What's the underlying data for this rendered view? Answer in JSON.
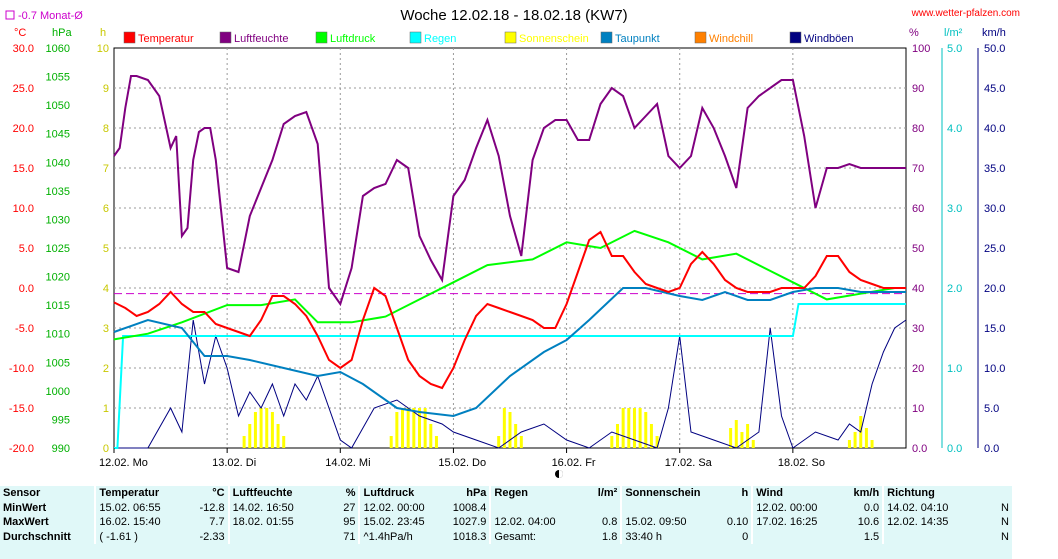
{
  "chart_data": {
    "title": "Woche 12.02.18 - 18.02.18 (KW7)",
    "website": "www.wetter-pfalzen.com",
    "month_avg_label": "-0.7 Monat-Ø",
    "month_avg_temp": -0.7,
    "type": "line",
    "x_ticks": [
      "12.02. Mo",
      "13.02. Di",
      "14.02. Mi",
      "15.02. Do",
      "16.02. Fr",
      "17.02. Sa",
      "18.02. So"
    ],
    "grid": true,
    "legend": [
      {
        "name": "Temperatur",
        "color": "#ff0000"
      },
      {
        "name": "Luftfeuchte",
        "color": "#800080"
      },
      {
        "name": "Luftdruck",
        "color": "#00ff00"
      },
      {
        "name": "Regen",
        "color": "#00ffff"
      },
      {
        "name": "Sonnenschein",
        "color": "#ffff00"
      },
      {
        "name": "Taupunkt",
        "color": "#0080c0"
      },
      {
        "name": "Windchill",
        "color": "#ff8000"
      },
      {
        "name": "Windböen",
        "color": "#000080"
      }
    ],
    "axes": {
      "temp": {
        "unit": "°C",
        "range": [
          -20,
          30
        ],
        "ticks": [
          "30.0",
          "25.0",
          "20.0",
          "15.0",
          "10.0",
          "5.0",
          "0.0",
          "-5.0",
          "-10.0",
          "-15.0",
          "-20.0"
        ],
        "color": "#ff0000"
      },
      "pressure": {
        "unit": "hPa",
        "range": [
          990,
          1060
        ],
        "ticks": [
          "1060",
          "1055",
          "1050",
          "1045",
          "1040",
          "1035",
          "1030",
          "1025",
          "1020",
          "1015",
          "1010",
          "1005",
          "1000",
          "995",
          "990"
        ],
        "color": "#00c000"
      },
      "sun": {
        "unit": "h",
        "range": [
          0,
          10
        ],
        "ticks": [
          "10",
          "9",
          "8",
          "7",
          "6",
          "5",
          "4",
          "3",
          "2",
          "1",
          "0"
        ],
        "color": "#d8d800"
      },
      "humidity": {
        "unit": "%",
        "range": [
          0,
          100
        ],
        "ticks": [
          "100",
          "90",
          "80",
          "70",
          "60",
          "50",
          "40",
          "30",
          "20",
          "10",
          "0.0"
        ],
        "color": "#800080"
      },
      "rain": {
        "unit": "l/m²",
        "range": [
          0,
          5
        ],
        "ticks": [
          "5.0",
          "4.0",
          "3.0",
          "2.0",
          "1.0",
          "0.0"
        ],
        "color": "#00c0c0"
      },
      "wind": {
        "unit": "km/h",
        "range": [
          0,
          50
        ],
        "ticks": [
          "50.0",
          "45.0",
          "40.0",
          "35.0",
          "30.0",
          "25.0",
          "20.0",
          "15.0",
          "10.0",
          "5.0",
          "0.0"
        ],
        "color": "#000080"
      }
    },
    "series": [
      {
        "name": "Temperatur",
        "axis": "temp",
        "day_x": [
          0,
          0.1,
          0.2,
          0.3,
          0.4,
          0.5,
          0.6,
          0.7,
          0.8,
          0.9,
          1.0,
          1.1,
          1.2,
          1.3,
          1.4,
          1.5,
          1.6,
          1.7,
          1.8,
          1.9,
          2.0,
          2.1,
          2.2,
          2.3,
          2.4,
          2.5,
          2.6,
          2.7,
          2.8,
          2.9,
          3.0,
          3.1,
          3.2,
          3.3,
          3.4,
          3.5,
          3.6,
          3.7,
          3.8,
          3.9,
          4.0,
          4.1,
          4.2,
          4.3,
          4.4,
          4.5,
          4.6,
          4.7,
          4.8,
          4.9,
          5.0,
          5.1,
          5.2,
          5.3,
          5.4,
          5.5,
          5.6,
          5.7,
          5.8,
          5.9,
          6.0,
          6.1,
          6.2,
          6.3,
          6.4,
          6.5,
          6.6,
          6.7,
          6.8,
          6.9,
          7.0
        ],
        "values": [
          -1.8,
          -2.5,
          -3.5,
          -3.0,
          -2.0,
          -0.5,
          -2.0,
          -3.0,
          -3.0,
          -4.5,
          -5.0,
          -5.5,
          -6.0,
          -4.0,
          -1.0,
          -1.0,
          -2.0,
          -3.5,
          -6.0,
          -9.0,
          -10.0,
          -9.0,
          -4.0,
          0.0,
          -1.0,
          -5.0,
          -9.0,
          -11.0,
          -12.0,
          -12.5,
          -10.0,
          -6.5,
          -3.5,
          -2.0,
          -2.5,
          -3.0,
          -3.5,
          -4.0,
          -5.0,
          -5.0,
          -2.0,
          2.0,
          6.0,
          7.0,
          4.0,
          4.0,
          2.0,
          0.5,
          0.0,
          -0.5,
          0.0,
          3.0,
          4.5,
          3.0,
          1.0,
          0.0,
          -0.5,
          -0.5,
          -0.5,
          0.0,
          0.0,
          0.0,
          1.5,
          4.0,
          4.0,
          2.0,
          1.0,
          0.5,
          0.0,
          0.0,
          0.0
        ],
        "color": "#ff0000"
      },
      {
        "name": "Luftfeuchte",
        "axis": "humidity",
        "day_x": [
          0,
          0.05,
          0.1,
          0.15,
          0.2,
          0.3,
          0.4,
          0.5,
          0.55,
          0.6,
          0.65,
          0.7,
          0.75,
          0.8,
          0.85,
          0.9,
          1.0,
          1.1,
          1.2,
          1.3,
          1.4,
          1.5,
          1.6,
          1.7,
          1.8,
          1.9,
          2.0,
          2.1,
          2.2,
          2.3,
          2.4,
          2.5,
          2.6,
          2.7,
          2.8,
          2.9,
          3.0,
          3.1,
          3.2,
          3.3,
          3.4,
          3.5,
          3.6,
          3.7,
          3.8,
          3.9,
          4.0,
          4.1,
          4.2,
          4.3,
          4.4,
          4.5,
          4.6,
          4.7,
          4.8,
          4.9,
          5.0,
          5.1,
          5.2,
          5.3,
          5.4,
          5.5,
          5.6,
          5.7,
          5.8,
          5.9,
          6.0,
          6.1,
          6.2,
          6.3,
          6.4,
          6.5,
          6.6,
          6.7,
          6.8,
          6.9,
          7.0
        ],
        "values": [
          73,
          75,
          85,
          93,
          93,
          92,
          88,
          75,
          78,
          53,
          55,
          72,
          79,
          80,
          80,
          72,
          45,
          44,
          58,
          65,
          72,
          81,
          83,
          84,
          76,
          40,
          36,
          45,
          63,
          65,
          66,
          72,
          70,
          53,
          47,
          42,
          63,
          67,
          75,
          82,
          73,
          58,
          48,
          72,
          80,
          82,
          82,
          77,
          77,
          86,
          90,
          88,
          80,
          83,
          86,
          73,
          70,
          73,
          85,
          80,
          73,
          65,
          85,
          88,
          90,
          92,
          92,
          78,
          60,
          70,
          70,
          71,
          70,
          70,
          70,
          70,
          70
        ],
        "color": "#800080"
      },
      {
        "name": "Luftdruck",
        "axis": "pressure",
        "day_x": [
          0,
          0.3,
          0.6,
          1.0,
          1.3,
          1.6,
          1.8,
          2.1,
          2.4,
          2.7,
          3.0,
          3.3,
          3.7,
          4.0,
          4.3,
          4.6,
          4.9,
          5.2,
          5.5,
          5.8,
          6.0,
          6.3,
          6.6,
          6.9,
          7.0
        ],
        "values": [
          1009,
          1010,
          1012,
          1015,
          1015,
          1016,
          1012,
          1012,
          1013,
          1016,
          1019,
          1022,
          1023,
          1026,
          1025,
          1028,
          1026,
          1023,
          1024,
          1021,
          1019,
          1016,
          1017,
          1018,
          1018
        ],
        "color": "#00ff00"
      },
      {
        "name": "Taupunkt",
        "axis": "temp",
        "day_x": [
          0,
          0.3,
          0.6,
          0.8,
          1.0,
          1.2,
          1.5,
          1.8,
          2.0,
          2.2,
          2.5,
          2.7,
          3.0,
          3.2,
          3.5,
          3.8,
          4.0,
          4.2,
          4.5,
          4.7,
          5.0,
          5.2,
          5.4,
          5.6,
          5.8,
          6.0,
          6.2,
          6.4,
          6.6,
          6.8,
          7.0
        ],
        "values": [
          -5.5,
          -4.0,
          -5.0,
          -8.5,
          -8.5,
          -9.0,
          -10.0,
          -11.0,
          -10.5,
          -12.0,
          -15.0,
          -15.5,
          -16.0,
          -15.0,
          -11.0,
          -8.0,
          -6.5,
          -4.0,
          0.0,
          0.0,
          -1.0,
          -1.5,
          -0.5,
          -1.5,
          -1.5,
          -0.5,
          0.0,
          0.0,
          -0.5,
          -0.5,
          -0.5
        ],
        "color": "#0080c0"
      },
      {
        "name": "Regen",
        "axis": "rain",
        "day_x": [
          0,
          0.03,
          0.08,
          0.15,
          0.3,
          6.0,
          6.05,
          6.1,
          6.5,
          7.0
        ],
        "values": [
          0.0,
          0.0,
          1.4,
          1.4,
          1.4,
          1.4,
          1.8,
          1.8,
          1.8,
          1.8
        ],
        "color": "#00ffff"
      },
      {
        "name": "Windböen",
        "axis": "wind",
        "day_x": [
          0,
          0.3,
          0.5,
          0.6,
          0.7,
          0.8,
          0.9,
          1.0,
          1.1,
          1.2,
          1.3,
          1.4,
          1.5,
          1.6,
          1.7,
          1.8,
          2.0,
          2.1,
          2.3,
          2.5,
          2.7,
          2.9,
          3.0,
          3.2,
          3.4,
          3.6,
          3.8,
          4.0,
          4.2,
          4.4,
          4.6,
          4.8,
          4.9,
          5.0,
          5.1,
          5.3,
          5.5,
          5.7,
          5.8,
          5.9,
          6.0,
          6.2,
          6.4,
          6.5,
          6.6,
          6.7,
          6.8,
          6.9,
          7.0
        ],
        "values": [
          0,
          0,
          5,
          2,
          16,
          8,
          14,
          10,
          4,
          7,
          5,
          8,
          4,
          8,
          6,
          9,
          1,
          0,
          5,
          6,
          4,
          3,
          2,
          1,
          0,
          2,
          3,
          1,
          0,
          2,
          1,
          0,
          5,
          14,
          2,
          1,
          0,
          2,
          15,
          4,
          0,
          2,
          1,
          3,
          2,
          8,
          12,
          15,
          16
        ],
        "color": "#000080"
      },
      {
        "name": "Sonnenschein",
        "axis": "sun",
        "day_x": [
          1.15,
          1.2,
          1.25,
          1.3,
          1.35,
          1.4,
          1.45,
          1.5,
          2.45,
          2.5,
          2.55,
          2.6,
          2.65,
          2.7,
          2.75,
          2.8,
          2.85,
          3.4,
          3.45,
          3.5,
          3.55,
          3.6,
          4.4,
          4.45,
          4.5,
          4.55,
          4.6,
          4.65,
          4.7,
          4.75,
          4.8,
          5.45,
          5.5,
          5.55,
          5.6,
          5.65,
          6.5,
          6.55,
          6.6,
          6.65,
          6.7
        ],
        "values": [
          0.3,
          0.6,
          0.9,
          1.0,
          1.0,
          0.9,
          0.6,
          0.3,
          0.3,
          0.9,
          1.0,
          1.0,
          1.0,
          1.0,
          1.0,
          0.6,
          0.3,
          0.3,
          1.0,
          0.9,
          0.6,
          0.3,
          0.3,
          0.6,
          1.0,
          1.0,
          1.0,
          1.0,
          0.9,
          0.6,
          0.3,
          0.5,
          0.7,
          0.4,
          0.6,
          0.2,
          0.2,
          0.4,
          0.8,
          0.5,
          0.2
        ],
        "color": "#ffff00"
      }
    ]
  },
  "stats": {
    "headers": {
      "sensor": "Sensor",
      "temp": "Temperatur",
      "temp_unit": "°C",
      "hum": "Luftfeuchte",
      "hum_unit": "%",
      "press": "Luftdruck",
      "press_unit": "hPa",
      "rain": "Regen",
      "rain_unit": "l/m²",
      "sun": "Sonnenschein",
      "sun_unit": "h",
      "wind": "Wind",
      "wind_unit": "km/h",
      "dir": "Richtung"
    },
    "rows": [
      {
        "label": "MinWert",
        "temp_time": "15.02.  06:55",
        "temp_val": "-12.8",
        "hum_time": "14.02.  16:50",
        "hum_val": "27",
        "press_time": "12.02.  00:00",
        "press_val": "1008.4",
        "rain_time": "",
        "rain_val": "",
        "sun_time": "",
        "sun_val": "",
        "wind_time": "12.02.  00:00",
        "wind_val": "0.0",
        "dir_time": "14.02.  04:10",
        "dir_val": "N"
      },
      {
        "label": "MaxWert",
        "temp_time": "16.02.  15:40",
        "temp_val": "7.7",
        "hum_time": "18.02.  01:55",
        "hum_val": "95",
        "press_time": "15.02.  23:45",
        "press_val": "1027.9",
        "rain_time": "12.02.  04:00",
        "rain_val": "0.8",
        "sun_time": "15.02.  09:50",
        "sun_val": "0.10",
        "wind_time": "17.02.  16:25",
        "wind_val": "10.6",
        "dir_time": "12.02.  14:35",
        "dir_val": "N"
      },
      {
        "label": "Durchschnitt",
        "temp_time": "( -1.61 )",
        "temp_val": "-2.33",
        "hum_time": "",
        "hum_val": "71",
        "press_time": "^1.4hPa/h",
        "press_val": "1018.3",
        "rain_time": "Gesamt:",
        "rain_val": "1.8",
        "sun_time": "33:40 h",
        "sun_val": "0",
        "wind_time": "",
        "wind_val": "1.5",
        "dir_time": "",
        "dir_val": "N"
      }
    ]
  }
}
